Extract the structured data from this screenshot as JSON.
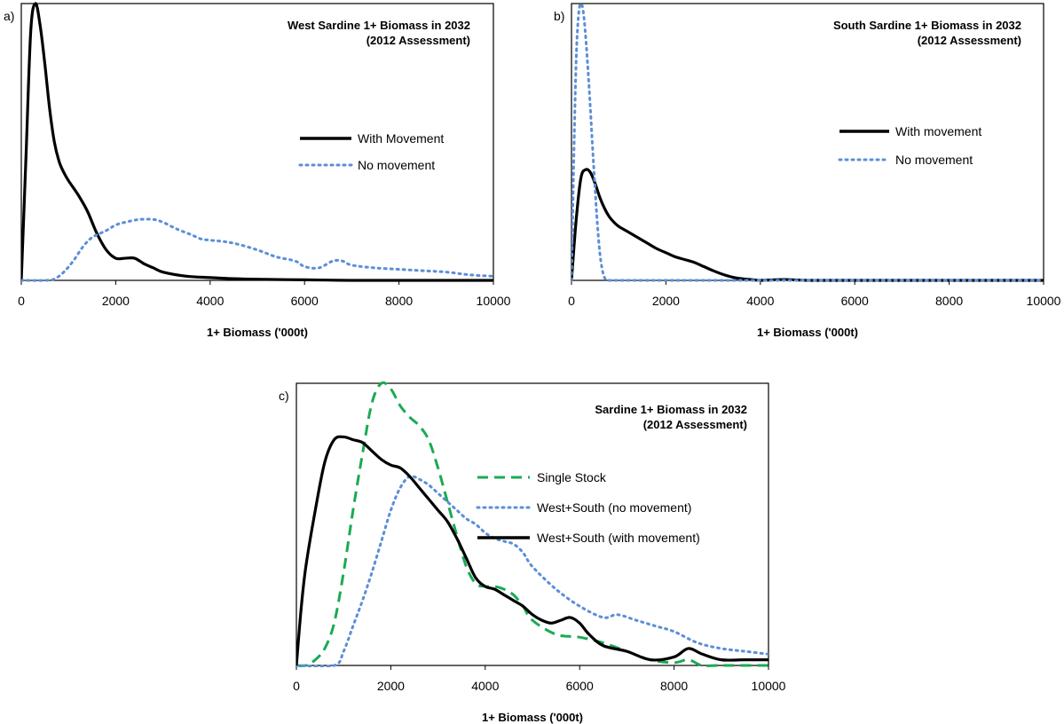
{
  "chart_data": [
    {
      "type": "line",
      "panel_label": "a)",
      "title": [
        "West Sardine 1+ Biomass in 2032",
        "(2012 Assessment)"
      ],
      "xlabel": "1+ Biomass ('000t)",
      "ylabel": "",
      "xlim": [
        0,
        10000
      ],
      "ylim": [
        0,
        1
      ],
      "xticks": [
        0,
        2000,
        4000,
        6000,
        8000,
        10000
      ],
      "y_ticks_shown": false,
      "grid": false,
      "legend_position": "right",
      "series": [
        {
          "name": "With Movement",
          "color": "#000000",
          "style": "solid",
          "x": [
            0,
            100,
            200,
            300,
            400,
            500,
            600,
            700,
            800,
            900,
            1000,
            1200,
            1400,
            1600,
            1800,
            2000,
            2200,
            2400,
            2600,
            2800,
            3000,
            3500,
            4000,
            4500,
            5000,
            6000,
            7000,
            8000,
            9000,
            10000
          ],
          "y": [
            0.0,
            0.45,
            0.9,
            1.0,
            0.92,
            0.78,
            0.62,
            0.5,
            0.43,
            0.39,
            0.36,
            0.31,
            0.25,
            0.17,
            0.11,
            0.08,
            0.08,
            0.08,
            0.06,
            0.045,
            0.03,
            0.015,
            0.01,
            0.006,
            0.004,
            0.002,
            0.0,
            0.0,
            0.0,
            0.0
          ]
        },
        {
          "name": "No movement",
          "color": "#5b8fd6",
          "style": "dotted",
          "x": [
            0,
            500,
            700,
            900,
            1100,
            1300,
            1500,
            1800,
            2000,
            2200,
            2500,
            2800,
            3000,
            3300,
            3600,
            3800,
            4000,
            4300,
            4600,
            5000,
            5400,
            5800,
            6000,
            6300,
            6600,
            6800,
            7000,
            7500,
            8000,
            8500,
            9000,
            9500,
            10000
          ],
          "y": [
            0.0,
            0.0,
            0.005,
            0.03,
            0.07,
            0.12,
            0.155,
            0.18,
            0.2,
            0.21,
            0.22,
            0.22,
            0.21,
            0.185,
            0.165,
            0.15,
            0.145,
            0.14,
            0.13,
            0.11,
            0.085,
            0.07,
            0.05,
            0.045,
            0.07,
            0.07,
            0.055,
            0.045,
            0.04,
            0.035,
            0.03,
            0.02,
            0.015
          ]
        }
      ]
    },
    {
      "type": "line",
      "panel_label": "b)",
      "title": [
        "South Sardine 1+ Biomass in 2032",
        "(2012 Assessment)"
      ],
      "xlabel": "1+ Biomass ('000t)",
      "ylabel": "",
      "xlim": [
        0,
        10000
      ],
      "ylim": [
        0,
        1
      ],
      "xticks": [
        0,
        2000,
        4000,
        6000,
        8000,
        10000
      ],
      "y_ticks_shown": false,
      "grid": false,
      "legend_position": "right",
      "series": [
        {
          "name": "With movement",
          "color": "#000000",
          "style": "solid",
          "x": [
            0,
            100,
            200,
            300,
            400,
            500,
            600,
            700,
            800,
            900,
            1000,
            1200,
            1400,
            1600,
            1800,
            2000,
            2200,
            2400,
            2600,
            2800,
            3000,
            3200,
            3400,
            3600,
            3800,
            4000,
            4500,
            5000,
            6000,
            7000,
            8000,
            9000,
            10000
          ],
          "y": [
            0.0,
            0.22,
            0.37,
            0.4,
            0.39,
            0.35,
            0.3,
            0.26,
            0.23,
            0.21,
            0.195,
            0.175,
            0.155,
            0.135,
            0.115,
            0.1,
            0.085,
            0.075,
            0.065,
            0.05,
            0.035,
            0.022,
            0.012,
            0.006,
            0.003,
            0.0,
            0.003,
            0.0,
            0.0,
            0.0,
            0.0,
            0.0,
            0.0
          ]
        },
        {
          "name": "No movement",
          "color": "#5b8fd6",
          "style": "dotted",
          "x": [
            0,
            50,
            100,
            150,
            200,
            250,
            300,
            350,
            400,
            450,
            500,
            550,
            600,
            650,
            700,
            750,
            800,
            1000,
            2000,
            4000,
            6000,
            8000,
            10000
          ],
          "y": [
            0.0,
            0.45,
            0.8,
            0.96,
            1.0,
            0.97,
            0.88,
            0.76,
            0.62,
            0.47,
            0.33,
            0.2,
            0.1,
            0.04,
            0.01,
            0.0,
            0.0,
            0.0,
            0.0,
            0.0,
            0.0,
            0.0,
            0.0
          ]
        }
      ]
    },
    {
      "type": "line",
      "panel_label": "c)",
      "title": [
        "Sardine 1+ Biomass in 2032",
        "(2012 Assessment)"
      ],
      "xlabel": "1+ Biomass ('000t)",
      "ylabel": "",
      "xlim": [
        0,
        10000
      ],
      "ylim": [
        0,
        1
      ],
      "xticks": [
        0,
        2000,
        4000,
        6000,
        8000,
        10000
      ],
      "y_ticks_shown": false,
      "grid": false,
      "legend_position": "right",
      "series": [
        {
          "name": "Single Stock",
          "color": "#1aaa55",
          "style": "dashed",
          "x": [
            0,
            200,
            400,
            600,
            800,
            1000,
            1200,
            1400,
            1600,
            1800,
            2000,
            2200,
            2400,
            2600,
            2800,
            3000,
            3200,
            3400,
            3600,
            3800,
            4000,
            4200,
            4400,
            4600,
            4800,
            5000,
            5500,
            6000,
            6500,
            7000,
            7500,
            8000,
            8300,
            8600,
            9000,
            10000
          ],
          "y": [
            0.0,
            0.0,
            0.02,
            0.06,
            0.15,
            0.33,
            0.55,
            0.75,
            0.93,
            1.0,
            0.98,
            0.92,
            0.88,
            0.85,
            0.8,
            0.7,
            0.58,
            0.46,
            0.35,
            0.29,
            0.28,
            0.28,
            0.27,
            0.25,
            0.21,
            0.16,
            0.11,
            0.1,
            0.08,
            0.05,
            0.02,
            0.01,
            0.02,
            0.0,
            0.0,
            0.0
          ]
        },
        {
          "name": "West+South (no movement)",
          "color": "#5b8fd6",
          "style": "dotted",
          "x": [
            0,
            800,
            1000,
            1200,
            1400,
            1600,
            1800,
            2000,
            2200,
            2400,
            2600,
            2800,
            3000,
            3200,
            3400,
            3600,
            3800,
            4000,
            4200,
            4400,
            4600,
            4800,
            5000,
            5500,
            6000,
            6500,
            6800,
            7200,
            7600,
            8000,
            8500,
            9000,
            9500,
            10000
          ],
          "y": [
            0.0,
            0.0,
            0.05,
            0.14,
            0.23,
            0.33,
            0.44,
            0.55,
            0.63,
            0.67,
            0.66,
            0.64,
            0.61,
            0.58,
            0.55,
            0.52,
            0.5,
            0.47,
            0.45,
            0.44,
            0.43,
            0.4,
            0.35,
            0.27,
            0.21,
            0.17,
            0.18,
            0.16,
            0.14,
            0.12,
            0.08,
            0.06,
            0.05,
            0.04
          ]
        },
        {
          "name": "West+South (with movement)",
          "color": "#000000",
          "style": "solid",
          "x": [
            0,
            100,
            200,
            400,
            600,
            800,
            1000,
            1200,
            1400,
            1600,
            1800,
            2000,
            2200,
            2400,
            2600,
            2800,
            3000,
            3200,
            3400,
            3600,
            3800,
            4000,
            4200,
            4400,
            4600,
            4800,
            5000,
            5200,
            5400,
            5600,
            5800,
            6000,
            6200,
            6500,
            7000,
            7500,
            8000,
            8300,
            8600,
            9000,
            9500,
            10000
          ],
          "y": [
            0.0,
            0.2,
            0.35,
            0.55,
            0.72,
            0.8,
            0.81,
            0.8,
            0.79,
            0.76,
            0.73,
            0.71,
            0.7,
            0.67,
            0.63,
            0.59,
            0.55,
            0.51,
            0.45,
            0.38,
            0.31,
            0.28,
            0.27,
            0.25,
            0.23,
            0.21,
            0.18,
            0.16,
            0.15,
            0.16,
            0.17,
            0.15,
            0.11,
            0.07,
            0.05,
            0.02,
            0.03,
            0.06,
            0.04,
            0.02,
            0.02,
            0.02
          ]
        }
      ]
    }
  ]
}
